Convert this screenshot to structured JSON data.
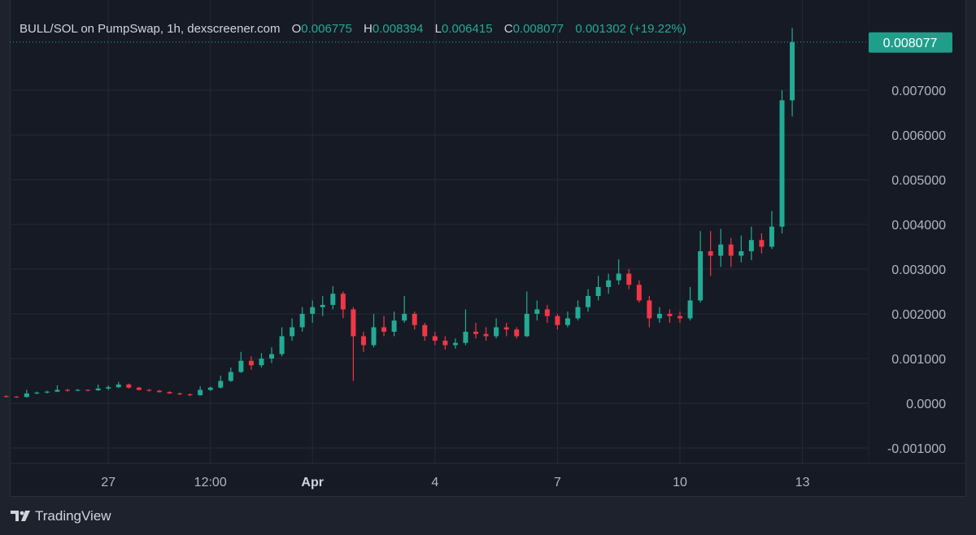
{
  "header": {
    "symbol": "BULL/SOL on PumpSwap, 1h, dexscreener.com",
    "o_label": "O",
    "o": "0.006775",
    "h_label": "H",
    "h": "0.008394",
    "l_label": "L",
    "l": "0.006415",
    "c_label": "C",
    "c": "0.008077",
    "change": "0.001302 (+19.22%)"
  },
  "branding": {
    "name": "TradingView",
    "icon": "tradingview-logo-icon"
  },
  "colors": {
    "up": "#22ab94",
    "down": "#f23645",
    "background": "#161a25",
    "grid": "#262a36",
    "axis_text": "#b2b5be",
    "last_price_bg": "#1f9e89"
  },
  "chart_data": {
    "type": "candlestick",
    "title": "BULL/SOL on PumpSwap, 1h, dexscreener.com",
    "last_price": "0.008077",
    "y_ticks": [
      "0.007000",
      "0.006000",
      "0.005000",
      "0.004000",
      "0.003000",
      "0.002000",
      "0.001000",
      "0.0000",
      "-0.001000"
    ],
    "y_tick_values": [
      0.007,
      0.006,
      0.005,
      0.004,
      0.003,
      0.002,
      0.001,
      0,
      -0.001
    ],
    "ylim": [
      -0.0013,
      0.009
    ],
    "x_ticks": [
      {
        "label": "27",
        "time": "03-27 00",
        "bold": false
      },
      {
        "label": "12:00",
        "time": "03-29 12",
        "bold": false
      },
      {
        "label": "Apr",
        "time": "04-01 00",
        "bold": true
      },
      {
        "label": "4",
        "time": "04-04 00",
        "bold": false
      },
      {
        "label": "7",
        "time": "04-07 00",
        "bold": false
      },
      {
        "label": "10",
        "time": "04-10 00",
        "bold": false
      },
      {
        "label": "13",
        "time": "04-13 00",
        "bold": false
      }
    ],
    "grid": true,
    "candles_columns": [
      "time",
      "open",
      "high",
      "low",
      "close"
    ],
    "candles": [
      [
        "03-24 12",
        0.00016,
        0.00018,
        0.00013,
        0.00015
      ],
      [
        "03-24 18",
        0.00015,
        0.00016,
        0.00012,
        0.00014
      ],
      [
        "03-25 00",
        0.00014,
        0.0003,
        0.00013,
        0.00022
      ],
      [
        "03-25 06",
        0.00022,
        0.00026,
        0.0002,
        0.00024
      ],
      [
        "03-25 12",
        0.00024,
        0.00028,
        0.00022,
        0.00026
      ],
      [
        "03-25 18",
        0.00026,
        0.0004,
        0.00025,
        0.0003
      ],
      [
        "03-26 00",
        0.0003,
        0.00032,
        0.00026,
        0.00028
      ],
      [
        "03-26 06",
        0.00028,
        0.00032,
        0.00027,
        0.0003
      ],
      [
        "03-26 12",
        0.0003,
        0.00031,
        0.00027,
        0.00029
      ],
      [
        "03-26 18",
        0.00029,
        0.00042,
        0.00028,
        0.00033
      ],
      [
        "03-27 00",
        0.00033,
        0.0004,
        0.0003,
        0.00036
      ],
      [
        "03-27 06",
        0.00036,
        0.00048,
        0.00034,
        0.00042
      ],
      [
        "03-27 12",
        0.00042,
        0.00044,
        0.00033,
        0.00035
      ],
      [
        "03-27 18",
        0.00035,
        0.00037,
        0.00029,
        0.0003
      ],
      [
        "03-28 00",
        0.0003,
        0.00032,
        0.00026,
        0.00028
      ],
      [
        "03-28 06",
        0.00028,
        0.0003,
        0.00024,
        0.00025
      ],
      [
        "03-28 12",
        0.00025,
        0.00027,
        0.00021,
        0.00022
      ],
      [
        "03-28 18",
        0.00022,
        0.00024,
        0.00018,
        0.0002
      ],
      [
        "03-29 00",
        0.0002,
        0.00022,
        0.00016,
        0.00018
      ],
      [
        "03-29 06",
        0.00018,
        0.00038,
        0.00017,
        0.0003
      ],
      [
        "03-29 12",
        0.0003,
        0.00037,
        0.00028,
        0.00035
      ],
      [
        "03-29 18",
        0.00035,
        0.00062,
        0.00033,
        0.0005
      ],
      [
        "03-30 00",
        0.0005,
        0.0008,
        0.00048,
        0.0007
      ],
      [
        "03-30 06",
        0.0007,
        0.00115,
        0.00068,
        0.00095
      ],
      [
        "03-30 12",
        0.00095,
        0.00105,
        0.00075,
        0.00085
      ],
      [
        "03-30 18",
        0.00085,
        0.00112,
        0.0008,
        0.001
      ],
      [
        "03-31 00",
        0.001,
        0.00125,
        0.0009,
        0.0011
      ],
      [
        "03-31 06",
        0.0011,
        0.0017,
        0.00105,
        0.0015
      ],
      [
        "03-31 12",
        0.0015,
        0.0019,
        0.0014,
        0.0017
      ],
      [
        "03-31 18",
        0.0017,
        0.00215,
        0.0016,
        0.002
      ],
      [
        "04-01 00",
        0.002,
        0.0023,
        0.0018,
        0.00215
      ],
      [
        "04-01 06",
        0.00215,
        0.0024,
        0.00195,
        0.0022
      ],
      [
        "04-01 12",
        0.0022,
        0.00262,
        0.0021,
        0.00245
      ],
      [
        "04-01 18",
        0.00245,
        0.0025,
        0.0019,
        0.0021
      ],
      [
        "04-02 00",
        0.0021,
        0.00215,
        0.0005,
        0.0015
      ],
      [
        "04-02 06",
        0.0015,
        0.0016,
        0.00115,
        0.0013
      ],
      [
        "04-02 12",
        0.0013,
        0.002,
        0.00125,
        0.0017
      ],
      [
        "04-02 18",
        0.0017,
        0.00195,
        0.0015,
        0.0016
      ],
      [
        "04-03 00",
        0.0016,
        0.00205,
        0.0015,
        0.00185
      ],
      [
        "04-03 06",
        0.00185,
        0.0024,
        0.0018,
        0.002
      ],
      [
        "04-03 12",
        0.002,
        0.00205,
        0.00165,
        0.00175
      ],
      [
        "04-03 18",
        0.00175,
        0.0018,
        0.0014,
        0.0015
      ],
      [
        "04-04 00",
        0.0015,
        0.0016,
        0.0013,
        0.0014
      ],
      [
        "04-04 06",
        0.0014,
        0.0015,
        0.0012,
        0.0013
      ],
      [
        "04-04 12",
        0.0013,
        0.00145,
        0.00122,
        0.00135
      ],
      [
        "04-04 18",
        0.00135,
        0.0021,
        0.0013,
        0.0016
      ],
      [
        "04-05 00",
        0.0016,
        0.0018,
        0.00145,
        0.00155
      ],
      [
        "04-05 06",
        0.00155,
        0.0017,
        0.0014,
        0.0015
      ],
      [
        "04-05 12",
        0.0015,
        0.0019,
        0.00145,
        0.0017
      ],
      [
        "04-05 18",
        0.0017,
        0.0018,
        0.0015,
        0.00165
      ],
      [
        "04-06 00",
        0.00165,
        0.0017,
        0.00145,
        0.0015
      ],
      [
        "04-06 06",
        0.0015,
        0.0025,
        0.00148,
        0.002
      ],
      [
        "04-06 12",
        0.002,
        0.0023,
        0.00185,
        0.0021
      ],
      [
        "04-06 18",
        0.0021,
        0.0022,
        0.0018,
        0.00195
      ],
      [
        "04-07 00",
        0.00195,
        0.002,
        0.00165,
        0.00175
      ],
      [
        "04-07 06",
        0.00175,
        0.00205,
        0.0017,
        0.0019
      ],
      [
        "04-07 12",
        0.0019,
        0.0023,
        0.00185,
        0.00215
      ],
      [
        "04-07 18",
        0.00215,
        0.00255,
        0.00205,
        0.0024
      ],
      [
        "04-08 00",
        0.0024,
        0.00285,
        0.0023,
        0.0026
      ],
      [
        "04-08 06",
        0.0026,
        0.0029,
        0.00245,
        0.00275
      ],
      [
        "04-08 12",
        0.00275,
        0.00322,
        0.00265,
        0.0029
      ],
      [
        "04-08 18",
        0.0029,
        0.003,
        0.00255,
        0.00265
      ],
      [
        "04-09 00",
        0.00265,
        0.00275,
        0.00225,
        0.0023
      ],
      [
        "04-09 06",
        0.0023,
        0.0024,
        0.0017,
        0.0019
      ],
      [
        "04-09 12",
        0.0019,
        0.00215,
        0.0018,
        0.002
      ],
      [
        "04-09 18",
        0.002,
        0.0021,
        0.0018,
        0.00195
      ],
      [
        "04-10 00",
        0.00195,
        0.00205,
        0.0018,
        0.0019
      ],
      [
        "04-10 06",
        0.0019,
        0.0026,
        0.00185,
        0.0023
      ],
      [
        "04-10 12",
        0.0023,
        0.00385,
        0.00225,
        0.0034
      ],
      [
        "04-10 18",
        0.0034,
        0.00385,
        0.00285,
        0.0033
      ],
      [
        "04-11 00",
        0.0033,
        0.0039,
        0.00305,
        0.00355
      ],
      [
        "04-11 06",
        0.00355,
        0.0037,
        0.00305,
        0.0033
      ],
      [
        "04-11 12",
        0.0033,
        0.00375,
        0.00315,
        0.0034
      ],
      [
        "04-11 18",
        0.0034,
        0.00395,
        0.0032,
        0.00365
      ],
      [
        "04-12 00",
        0.00365,
        0.0038,
        0.00335,
        0.0035
      ],
      [
        "04-12 06",
        0.0035,
        0.0043,
        0.00345,
        0.00395
      ],
      [
        "04-12 12",
        0.00395,
        0.007,
        0.0038,
        0.006775
      ],
      [
        "04-12 18",
        0.006775,
        0.008394,
        0.006415,
        0.008077
      ]
    ]
  }
}
